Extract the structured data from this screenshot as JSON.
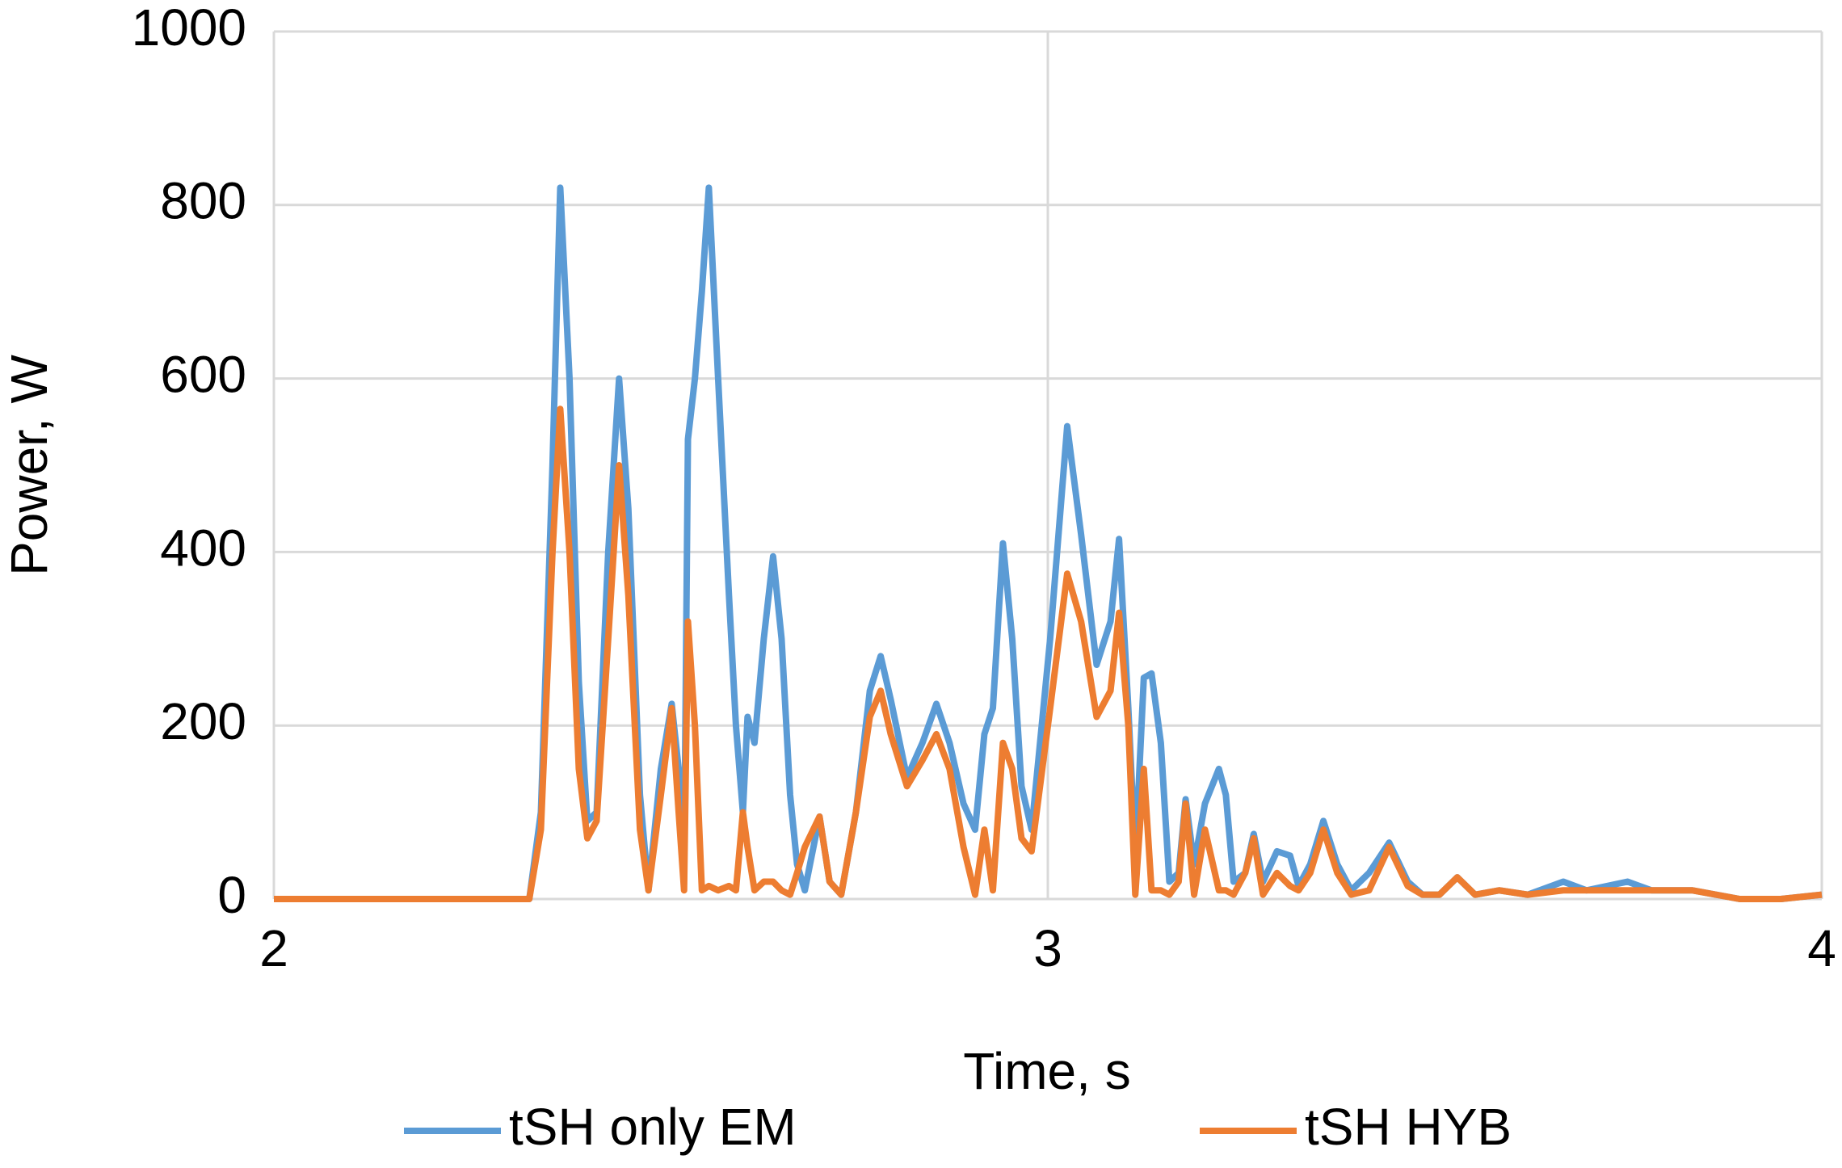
{
  "chart_data": {
    "type": "line",
    "x_label": "Time, s",
    "y_label": "Power, W",
    "xlim": [
      2,
      4
    ],
    "xticks": [
      2,
      3,
      4
    ],
    "ylim": [
      0,
      1000
    ],
    "yticks": [
      0,
      200,
      400,
      600,
      800,
      1000
    ],
    "grid": true,
    "legend": "bottom",
    "x": [
      2.0,
      2.33,
      2.345,
      2.36,
      2.37,
      2.382,
      2.394,
      2.405,
      2.417,
      2.432,
      2.446,
      2.458,
      2.473,
      2.484,
      2.5,
      2.514,
      2.523,
      2.53,
      2.535,
      2.544,
      2.553,
      2.562,
      2.574,
      2.588,
      2.597,
      2.606,
      2.612,
      2.621,
      2.633,
      2.645,
      2.656,
      2.667,
      2.676,
      2.686,
      2.705,
      2.718,
      2.733,
      2.752,
      2.77,
      2.784,
      2.797,
      2.818,
      2.838,
      2.856,
      2.873,
      2.891,
      2.906,
      2.918,
      2.929,
      2.942,
      2.954,
      2.966,
      2.979,
      3.003,
      3.025,
      3.043,
      3.063,
      3.081,
      3.092,
      3.104,
      3.113,
      3.124,
      3.134,
      3.146,
      3.157,
      3.169,
      3.178,
      3.189,
      3.203,
      3.221,
      3.23,
      3.24,
      3.255,
      3.266,
      3.278,
      3.296,
      3.313,
      3.324,
      3.339,
      3.356,
      3.374,
      3.392,
      3.415,
      3.441,
      3.465,
      3.484,
      3.506,
      3.529,
      3.552,
      3.583,
      3.62,
      3.666,
      3.696,
      3.749,
      3.78,
      3.833,
      3.894,
      3.947,
      4.0
    ],
    "series": [
      {
        "name": "tSH only EM",
        "color": "#5b9bd5",
        "values": [
          0,
          0,
          100,
          500,
          820,
          600,
          250,
          90,
          100,
          400,
          600,
          450,
          120,
          10,
          150,
          225,
          150,
          30,
          530,
          600,
          700,
          820,
          600,
          350,
          200,
          100,
          210,
          180,
          300,
          395,
          300,
          120,
          40,
          10,
          95,
          20,
          5,
          100,
          240,
          280,
          230,
          140,
          180,
          225,
          180,
          110,
          80,
          190,
          220,
          410,
          300,
          130,
          80,
          300,
          545,
          420,
          270,
          320,
          415,
          220,
          50,
          255,
          260,
          180,
          20,
          30,
          115,
          40,
          110,
          150,
          120,
          20,
          30,
          75,
          20,
          55,
          50,
          15,
          40,
          90,
          40,
          10,
          30,
          65,
          20,
          5,
          5,
          25,
          5,
          10,
          5,
          20,
          10,
          20,
          10,
          10,
          0,
          0,
          5
        ]
      },
      {
        "name": "tSH HYB",
        "color": "#ed7d31",
        "values": [
          0,
          0,
          80,
          400,
          565,
          400,
          150,
          70,
          90,
          300,
          500,
          350,
          80,
          10,
          120,
          220,
          100,
          10,
          320,
          200,
          10,
          15,
          10,
          15,
          10,
          100,
          60,
          10,
          20,
          20,
          10,
          5,
          30,
          60,
          95,
          20,
          5,
          100,
          210,
          240,
          190,
          130,
          160,
          190,
          150,
          60,
          5,
          80,
          10,
          180,
          150,
          70,
          55,
          220,
          375,
          320,
          210,
          240,
          330,
          200,
          5,
          150,
          10,
          10,
          5,
          20,
          110,
          5,
          80,
          10,
          10,
          5,
          30,
          70,
          5,
          30,
          15,
          10,
          30,
          80,
          30,
          5,
          10,
          60,
          15,
          5,
          5,
          25,
          5,
          10,
          5,
          10,
          10,
          10,
          10,
          10,
          0,
          0,
          5
        ]
      }
    ]
  }
}
